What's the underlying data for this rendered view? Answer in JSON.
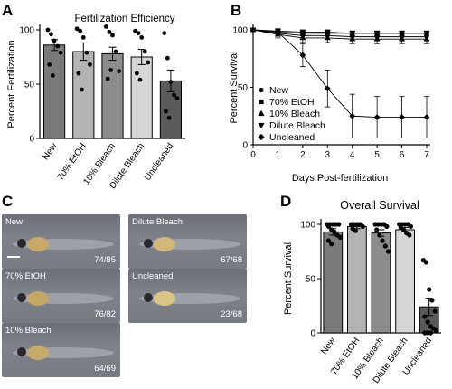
{
  "panels": {
    "a": "A",
    "b": "B",
    "c": "C",
    "d": "D"
  },
  "chart_data": [
    {
      "id": "A",
      "type": "bar",
      "title": "Fertilization Efficiency",
      "xlabel": "",
      "ylabel": "Percent Fertilization",
      "ylim": [
        0,
        100
      ],
      "yticks": [
        0,
        50,
        100
      ],
      "categories": [
        "New",
        "70% EtOH",
        "10% Bleach",
        "Dilute Bleach",
        "Uncleaned"
      ],
      "values": [
        86,
        80,
        78,
        75,
        53
      ],
      "errors": [
        5,
        8,
        6,
        7,
        10
      ],
      "bar_colors": [
        "#7a7a7a",
        "#b4b4b4",
        "#8c8c8c",
        "#d6d6d6",
        "#5a5a5a"
      ],
      "points": [
        [
          100,
          96,
          90,
          85,
          79,
          68,
          58
        ],
        [
          101,
          99,
          93,
          79,
          68,
          60,
          45
        ],
        [
          103,
          98,
          95,
          80,
          62,
          55,
          63
        ],
        [
          99,
          97,
          93,
          80,
          70,
          60,
          54
        ],
        [
          97,
          74,
          52,
          40,
          37,
          25,
          19
        ]
      ]
    },
    {
      "id": "B",
      "type": "line",
      "title": "",
      "xlabel": "Days Post-fertilization",
      "ylabel": "Percent Survival",
      "xlim": [
        0,
        7
      ],
      "ylim": [
        0,
        100
      ],
      "xticks": [
        0,
        1,
        2,
        3,
        4,
        5,
        6,
        7
      ],
      "yticks": [
        0,
        50,
        100
      ],
      "legend_position": "bottom-left",
      "x": [
        0,
        1,
        2,
        3,
        4,
        5,
        6,
        7
      ],
      "series": [
        {
          "name": "New",
          "marker": "circle",
          "values": [
            100,
            97,
            95,
            95,
            94,
            94,
            94,
            94
          ],
          "errors": [
            0,
            2,
            3,
            3,
            3,
            3,
            3,
            3
          ]
        },
        {
          "name": "70% EtOH",
          "marker": "square",
          "values": [
            100,
            98,
            97,
            97,
            97,
            97,
            97,
            97
          ],
          "errors": [
            0,
            2,
            2,
            2,
            2,
            2,
            2,
            2
          ]
        },
        {
          "name": "10% Bleach",
          "marker": "triangle-up",
          "values": [
            100,
            96,
            93,
            93,
            92,
            92,
            92,
            92
          ],
          "errors": [
            0,
            3,
            4,
            4,
            4,
            4,
            4,
            4
          ]
        },
        {
          "name": "Dilute Bleach",
          "marker": "triangle-down",
          "values": [
            100,
            99,
            98,
            98,
            97,
            97,
            97,
            97
          ],
          "errors": [
            0,
            1,
            2,
            2,
            2,
            2,
            2,
            2
          ]
        },
        {
          "name": "Uncleaned",
          "marker": "diamond",
          "values": [
            100,
            98,
            78,
            49,
            25,
            24,
            24,
            24
          ],
          "errors": [
            0,
            3,
            10,
            16,
            19,
            18,
            18,
            18
          ]
        }
      ]
    },
    {
      "id": "D",
      "type": "bar",
      "title": "Overall Survival",
      "xlabel": "",
      "ylabel": "Percent Survival",
      "ylim": [
        0,
        100
      ],
      "yticks": [
        0,
        50,
        100
      ],
      "categories": [
        "New",
        "70% EtOH",
        "10% Bleach",
        "Dilute Bleach",
        "Uncleaned"
      ],
      "values": [
        93,
        98,
        92,
        95,
        24
      ],
      "errors": [
        3,
        2,
        3,
        2,
        8
      ],
      "bar_colors": [
        "#7a7a7a",
        "#b4b4b4",
        "#8c8c8c",
        "#d6d6d6",
        "#5a5a5a"
      ],
      "points": [
        [
          100,
          100,
          100,
          100,
          100,
          98,
          95,
          93,
          90,
          88,
          85,
          82
        ],
        [
          100,
          100,
          100,
          100,
          98,
          96,
          94
        ],
        [
          100,
          100,
          100,
          100,
          98,
          95,
          90,
          85,
          80,
          75
        ],
        [
          100,
          100,
          100,
          100,
          98,
          97,
          95,
          92,
          90
        ],
        [
          67,
          65,
          40,
          30,
          20,
          15,
          10,
          6,
          4,
          2,
          0,
          0,
          0
        ]
      ]
    }
  ],
  "images": [
    {
      "label": "New",
      "count": "74/85"
    },
    {
      "label": "Dilute Bleach",
      "count": "67/68"
    },
    {
      "label": "70% EtOH",
      "count": "76/82"
    },
    {
      "label": "Uncleaned",
      "count": "23/68"
    },
    {
      "label": "10% Bleach",
      "count": "64/69"
    }
  ]
}
